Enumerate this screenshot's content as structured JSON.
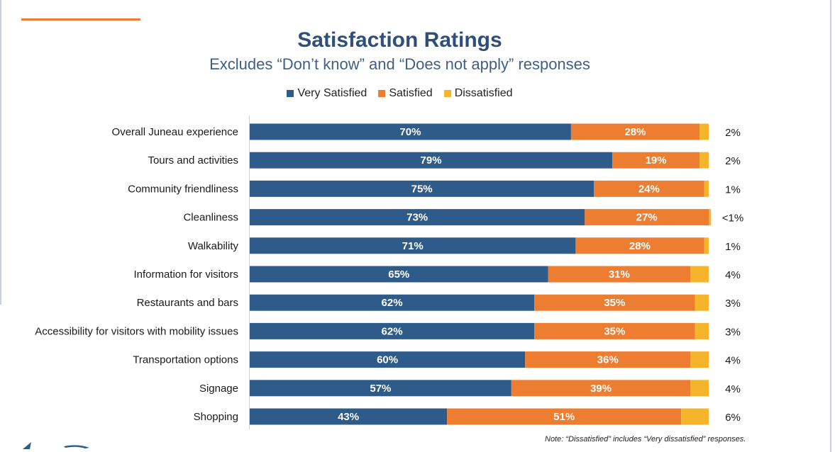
{
  "chart_data": {
    "type": "bar",
    "orientation": "horizontal",
    "stacked": true,
    "title": "Satisfaction Ratings",
    "subtitle": "Excludes “Don’t know” and “Does not apply” responses",
    "legend_position": "top",
    "categories": [
      "Overall Juneau experience",
      "Tours and activities",
      "Community friendliness",
      "Cleanliness",
      "Walkability",
      "Information for visitors",
      "Restaurants and bars",
      "Accessibility for visitors with mobility issues",
      "Transportation options",
      "Signage",
      "Shopping"
    ],
    "series": [
      {
        "name": "Very Satisfied",
        "color": "#2e5b8a",
        "values": [
          70,
          79,
          75,
          73,
          71,
          65,
          62,
          62,
          60,
          57,
          43
        ],
        "labels": [
          "70%",
          "79%",
          "75%",
          "73%",
          "71%",
          "65%",
          "62%",
          "62%",
          "60%",
          "57%",
          "43%"
        ]
      },
      {
        "name": "Satisfied",
        "color": "#ed7d31",
        "values": [
          28,
          19,
          24,
          27,
          28,
          31,
          35,
          35,
          36,
          39,
          51
        ],
        "labels": [
          "28%",
          "19%",
          "24%",
          "27%",
          "28%",
          "31%",
          "35%",
          "35%",
          "36%",
          "39%",
          "51%"
        ]
      },
      {
        "name": "Dissatisfied",
        "color": "#f6b42c",
        "values": [
          2,
          2,
          1,
          0.5,
          1,
          4,
          3,
          3,
          4,
          4,
          6
        ],
        "labels": [
          "2%",
          "2%",
          "1%",
          "<1%",
          "1%",
          "4%",
          "3%",
          "3%",
          "4%",
          "4%",
          "6%"
        ]
      }
    ],
    "xlim": [
      0,
      100
    ]
  },
  "note": "Note: “Dissatisfied” includes “Very dissatisfied” responses."
}
